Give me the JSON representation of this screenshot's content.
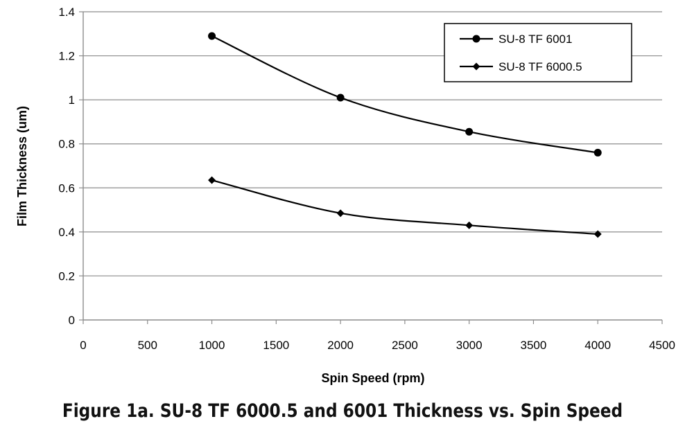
{
  "chart_data": {
    "type": "line",
    "xlabel": "Spin Speed (rpm)",
    "ylabel": "Film Thickness (um)",
    "xlim": [
      0,
      4500
    ],
    "ylim": [
      0,
      1.4
    ],
    "x_ticks": [
      "0",
      "500",
      "1000",
      "1500",
      "2000",
      "2500",
      "3000",
      "3500",
      "4000",
      "4500"
    ],
    "y_ticks": [
      "0",
      "0.2",
      "0.4",
      "0.6",
      "0.8",
      "1",
      "1.2",
      "1.4"
    ],
    "grid": "horizontal",
    "legend_position": "top-right",
    "series": [
      {
        "name": "SU-8 TF 6001",
        "marker": "circle",
        "x": [
          1000,
          2000,
          3000,
          4000
        ],
        "y": [
          1.29,
          1.01,
          0.855,
          0.76
        ]
      },
      {
        "name": "SU-8 TF 6000.5",
        "marker": "diamond",
        "x": [
          1000,
          2000,
          3000,
          4000
        ],
        "y": [
          0.635,
          0.485,
          0.43,
          0.39
        ]
      }
    ],
    "color": "#000000",
    "grid_color": "#8c8c8c"
  },
  "caption": "Figure 1a. SU-8 TF 6000.5 and 6001 Thickness vs. Spin Speed"
}
